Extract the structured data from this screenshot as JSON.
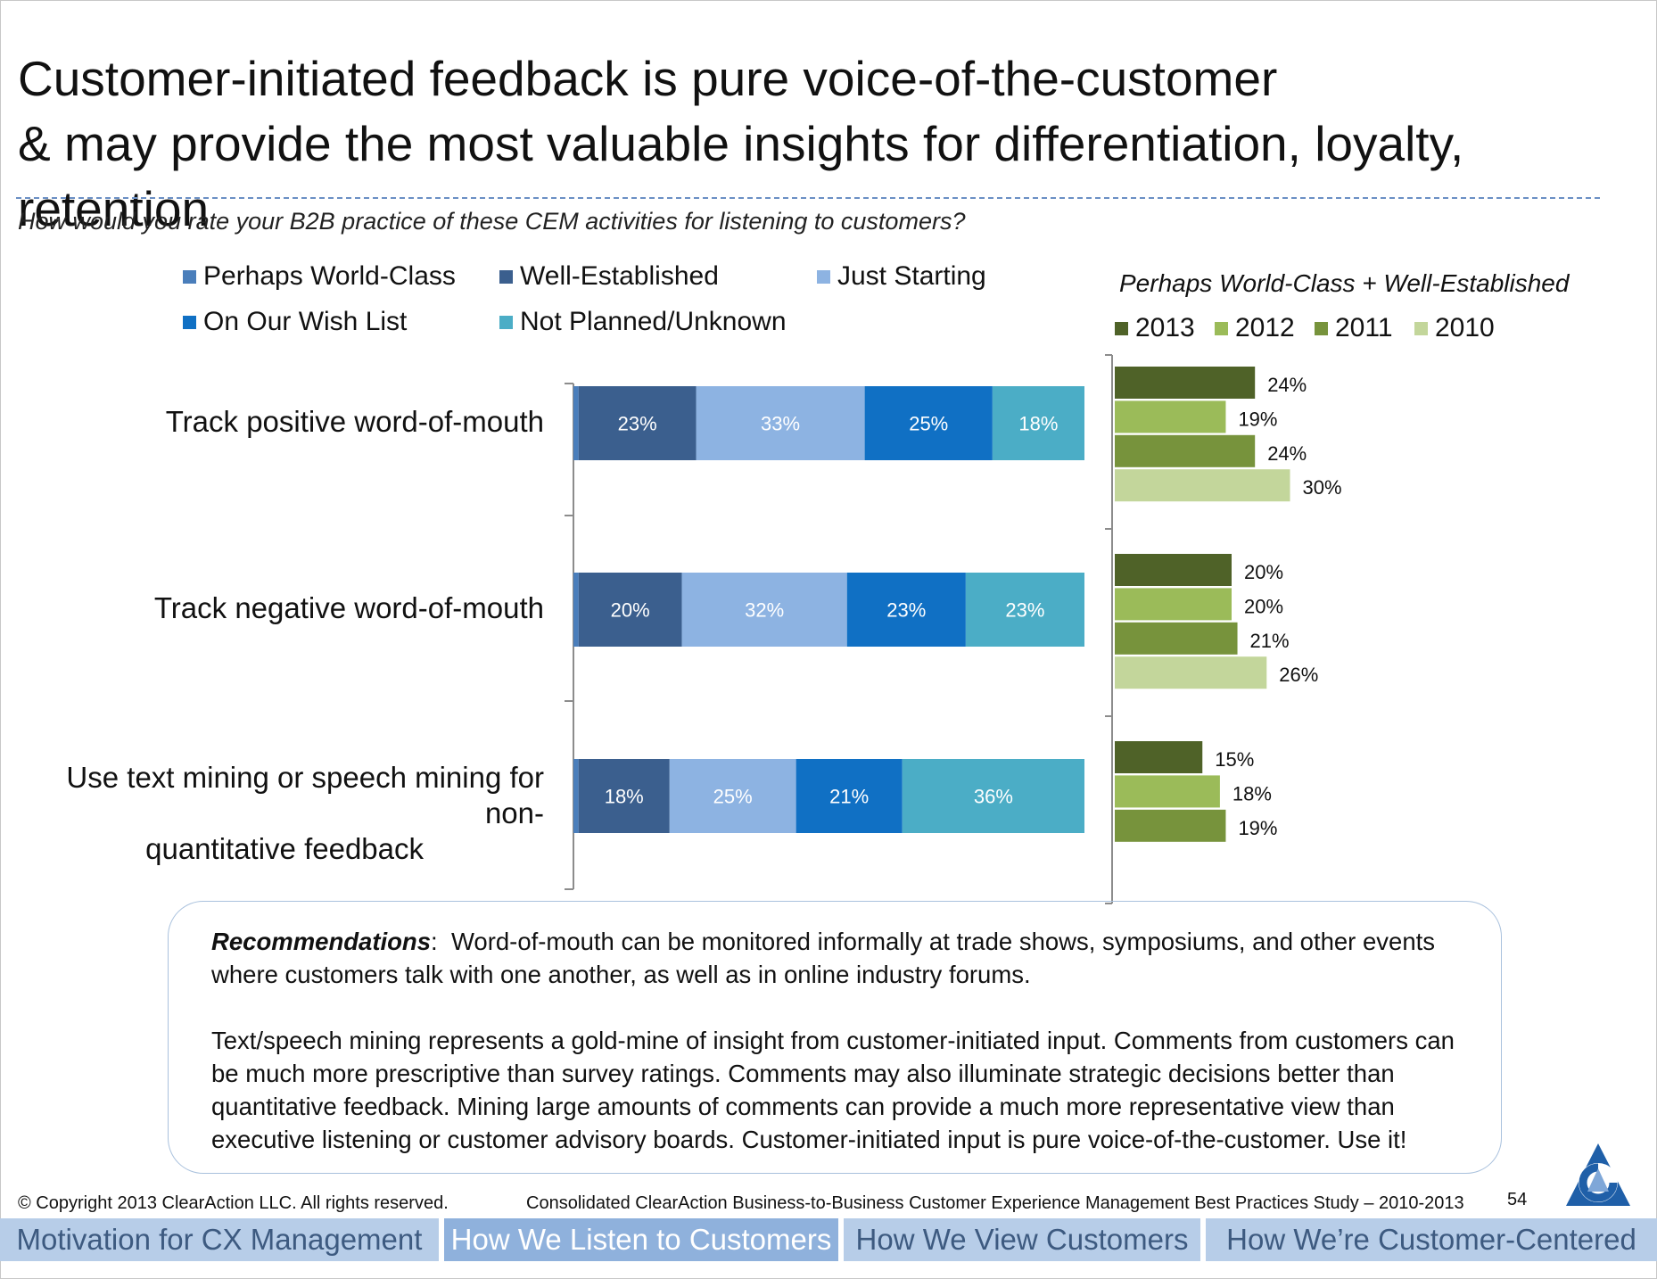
{
  "title": {
    "line1": "Customer-initiated feedback is pure voice-of-the-customer",
    "line2": "& may provide the most valuable insights for differentiation, loyalty, retention"
  },
  "question": "How would you rate your B2B practice of these CEM activities for listening to customers?",
  "chart_data": [
    {
      "type": "bar",
      "orientation": "horizontal",
      "stacked": true,
      "title": "",
      "categories": [
        "Track positive word-of-mouth",
        "Track negative word-of-mouth",
        "Use text mining or speech mining for non-quantitative feedback"
      ],
      "series": [
        {
          "name": "Perhaps World-Class",
          "color": "#4a7ebb",
          "values": [
            1,
            1,
            1
          ]
        },
        {
          "name": "Well-Established",
          "color": "#3b5f8e",
          "values": [
            23,
            20,
            18
          ]
        },
        {
          "name": "Just Starting",
          "color": "#8db3e2",
          "values": [
            33,
            32,
            25
          ]
        },
        {
          "name": "On Our Wish List",
          "color": "#1070c4",
          "values": [
            25,
            23,
            21
          ]
        },
        {
          "name": "Not Planned/Unknown",
          "color": "#4badc6",
          "values": [
            18,
            23,
            36
          ]
        }
      ],
      "data_labels": [
        [
          null,
          "23%",
          "33%",
          "25%",
          "18%"
        ],
        [
          null,
          "20%",
          "32%",
          "23%",
          "23%"
        ],
        [
          null,
          "18%",
          "25%",
          "21%",
          "36%"
        ]
      ],
      "xlim": [
        0,
        100
      ],
      "legend": "top",
      "grid": false
    },
    {
      "type": "bar",
      "orientation": "horizontal",
      "title": "Perhaps World-Class + Well-Established",
      "categories": [
        "Track positive word-of-mouth",
        "Track negative word-of-mouth",
        "Use text mining or speech mining for non-quantitative feedback"
      ],
      "series": [
        {
          "name": "2013",
          "color": "#4f6228",
          "values": [
            24,
            20,
            15
          ],
          "labels": [
            "24%",
            "20%",
            "15%"
          ]
        },
        {
          "name": "2012",
          "color": "#9bbb59",
          "values": [
            19,
            20,
            18
          ],
          "labels": [
            "19%",
            "20%",
            "18%"
          ]
        },
        {
          "name": "2011",
          "color": "#77933c",
          "values": [
            24,
            21,
            19
          ],
          "labels": [
            "24%",
            "21%",
            "19%"
          ]
        },
        {
          "name": "2010",
          "color": "#c3d69b",
          "values": [
            30,
            26,
            null
          ],
          "labels": [
            "30%",
            "26%",
            null
          ]
        }
      ],
      "xlim": [
        0,
        100
      ],
      "legend": "top",
      "grid": false
    }
  ],
  "category_labels": {
    "c1": "Track positive word-of-mouth",
    "c2": "Track negative word-of-mouth",
    "c3_line1": "Use text mining or speech mining for non-",
    "c3_line2": "quantitative feedback"
  },
  "recommendations": {
    "heading": "Recommendations",
    "para1": "Word-of-mouth can be monitored informally at trade shows, symposiums, and other events where customers talk with one another, as well as in online industry forums.",
    "para2": "Text/speech mining represents a gold-mine of insight from customer-initiated input. Comments from customers can be much more prescriptive than survey ratings. Comments may also illuminate strategic decisions better than quantitative feedback. Mining large amounts of comments can provide a much more representative view than executive listening or customer advisory boards. Customer-initiated input is pure voice-of-the-customer. Use it!"
  },
  "footer": {
    "copyright": "© Copyright 2013 ClearAction LLC. All rights reserved.",
    "study": "Consolidated ClearAction Business-to-Business Customer Experience Management Best Practices Study – 2010-2013",
    "page_number": "54",
    "logo_icon": "clearaction-logo-icon"
  },
  "nav": {
    "tabs": [
      {
        "label": "Motivation for CX Management",
        "active": false
      },
      {
        "label": "How We Listen to Customers",
        "active": true
      },
      {
        "label": "How We View Customers",
        "active": false
      },
      {
        "label": "How We’re Customer-Centered",
        "active": false
      }
    ]
  }
}
